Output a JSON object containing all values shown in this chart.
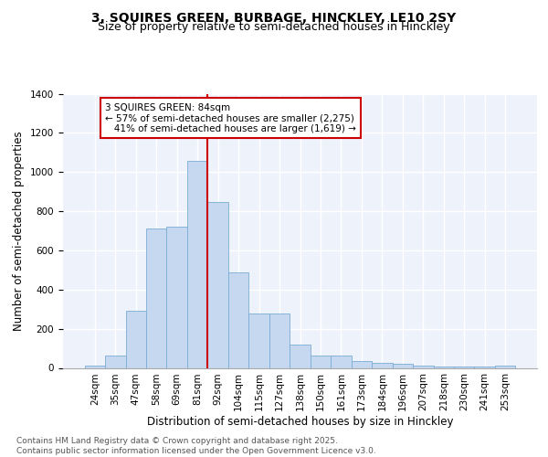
{
  "title1": "3, SQUIRES GREEN, BURBAGE, HINCKLEY, LE10 2SY",
  "title2": "Size of property relative to semi-detached houses in Hinckley",
  "xlabel": "Distribution of semi-detached houses by size in Hinckley",
  "ylabel": "Number of semi-detached properties",
  "bin_labels": [
    "24sqm",
    "35sqm",
    "47sqm",
    "58sqm",
    "69sqm",
    "81sqm",
    "92sqm",
    "104sqm",
    "115sqm",
    "127sqm",
    "138sqm",
    "150sqm",
    "161sqm",
    "173sqm",
    "184sqm",
    "196sqm",
    "207sqm",
    "218sqm",
    "230sqm",
    "241sqm",
    "253sqm"
  ],
  "bar_values": [
    10,
    65,
    290,
    710,
    720,
    1055,
    845,
    490,
    280,
    280,
    120,
    65,
    65,
    35,
    25,
    20,
    12,
    5,
    5,
    5,
    10
  ],
  "bar_color": "#c5d8f0",
  "bar_edge_color": "#7aadd4",
  "background_color": "#eef2fb",
  "grid_color": "#ffffff",
  "annotation_text": "3 SQUIRES GREEN: 84sqm\n← 57% of semi-detached houses are smaller (2,275)\n   41% of semi-detached houses are larger (1,619) →",
  "annotation_box_color": "#ffffff",
  "annotation_box_edge": "#cc0000",
  "vline_pos": 5.5,
  "ylim": [
    0,
    1400
  ],
  "yticks": [
    0,
    200,
    400,
    600,
    800,
    1000,
    1200,
    1400
  ],
  "footer_text": "Contains HM Land Registry data © Crown copyright and database right 2025.\nContains public sector information licensed under the Open Government Licence v3.0.",
  "title_fontsize": 10,
  "subtitle_fontsize": 9,
  "tick_fontsize": 7.5,
  "ylabel_fontsize": 8.5,
  "xlabel_fontsize": 8.5,
  "annotation_fontsize": 7.5,
  "footer_fontsize": 6.5
}
